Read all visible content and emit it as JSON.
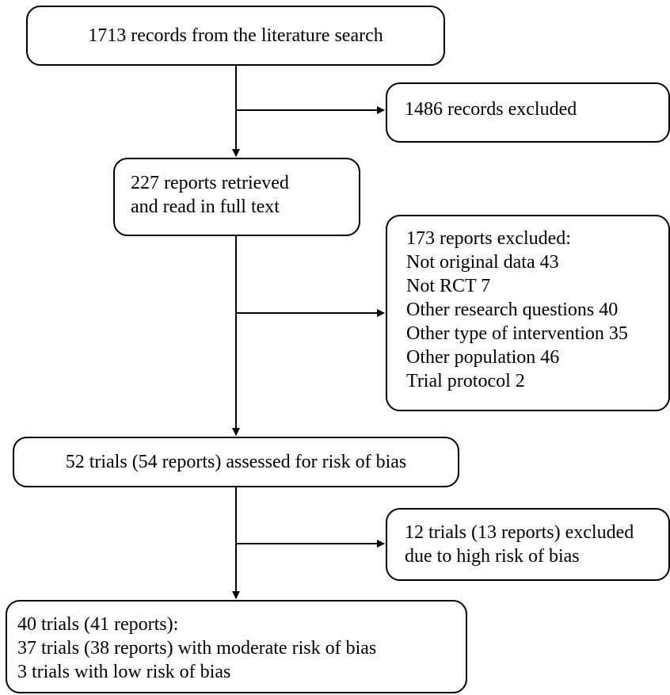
{
  "boxes": {
    "records": {
      "text": "1713 records from the literature search"
    },
    "records_excluded": {
      "text": "1486 records excluded"
    },
    "reports_retrieved": {
      "lines": [
        "227 reports retrieved",
        "and read in full text"
      ]
    },
    "reports_excluded": {
      "lines": [
        "173 reports excluded:",
        "Not original data 43",
        "Not RCT 7",
        "Other research questions 40",
        "Other type of intervention 35",
        "Other population 46",
        "Trial protocol 2"
      ]
    },
    "trials_assessed": {
      "text": "52 trials (54 reports) assessed for risk of bias"
    },
    "trials_excluded": {
      "lines": [
        "12 trials (13 reports) excluded",
        "due to high risk of bias"
      ]
    },
    "final": {
      "lines": [
        "40 trials (41 reports):",
        "37 trials (38 reports) with moderate risk of bias",
        "3 trials with low risk of bias"
      ]
    }
  }
}
